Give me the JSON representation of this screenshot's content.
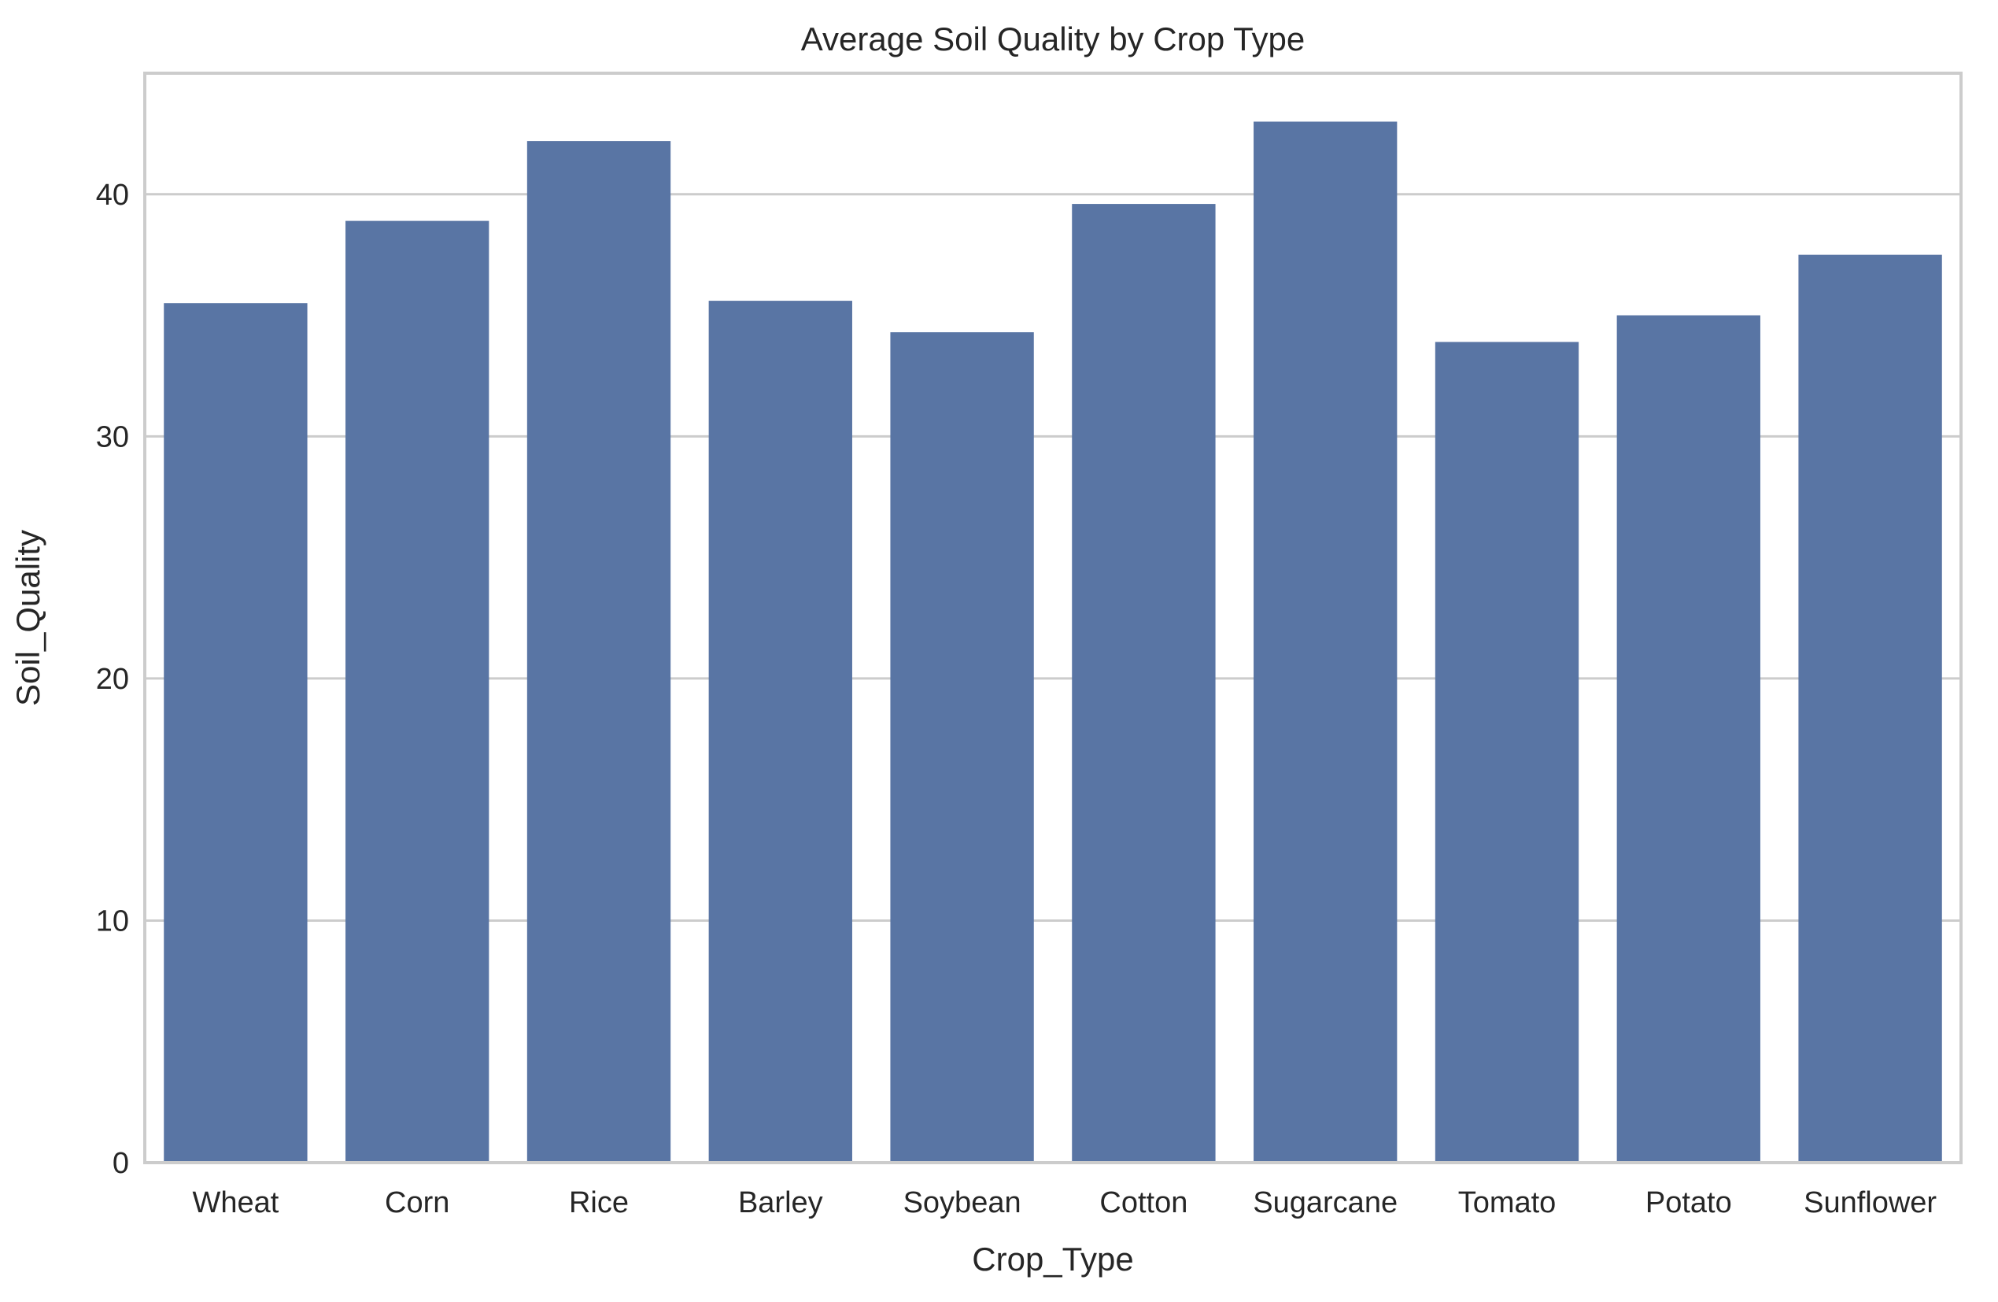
{
  "chart_data": {
    "type": "bar",
    "title": "Average Soil Quality by Crop Type",
    "xlabel": "Crop_Type",
    "ylabel": "Soil_Quality",
    "categories": [
      "Wheat",
      "Corn",
      "Rice",
      "Barley",
      "Soybean",
      "Cotton",
      "Sugarcane",
      "Tomato",
      "Potato",
      "Sunflower"
    ],
    "values": [
      35.5,
      38.9,
      42.2,
      35.6,
      34.3,
      39.6,
      43.0,
      33.9,
      35.0,
      37.5
    ],
    "ylim": [
      0,
      45
    ],
    "yticks": [
      0,
      10,
      20,
      30,
      40
    ],
    "grid": "horizontal",
    "colors": {
      "bar": "#5975a4",
      "grid": "#cccccc",
      "spine": "#cccccc",
      "text": "#262626"
    }
  }
}
